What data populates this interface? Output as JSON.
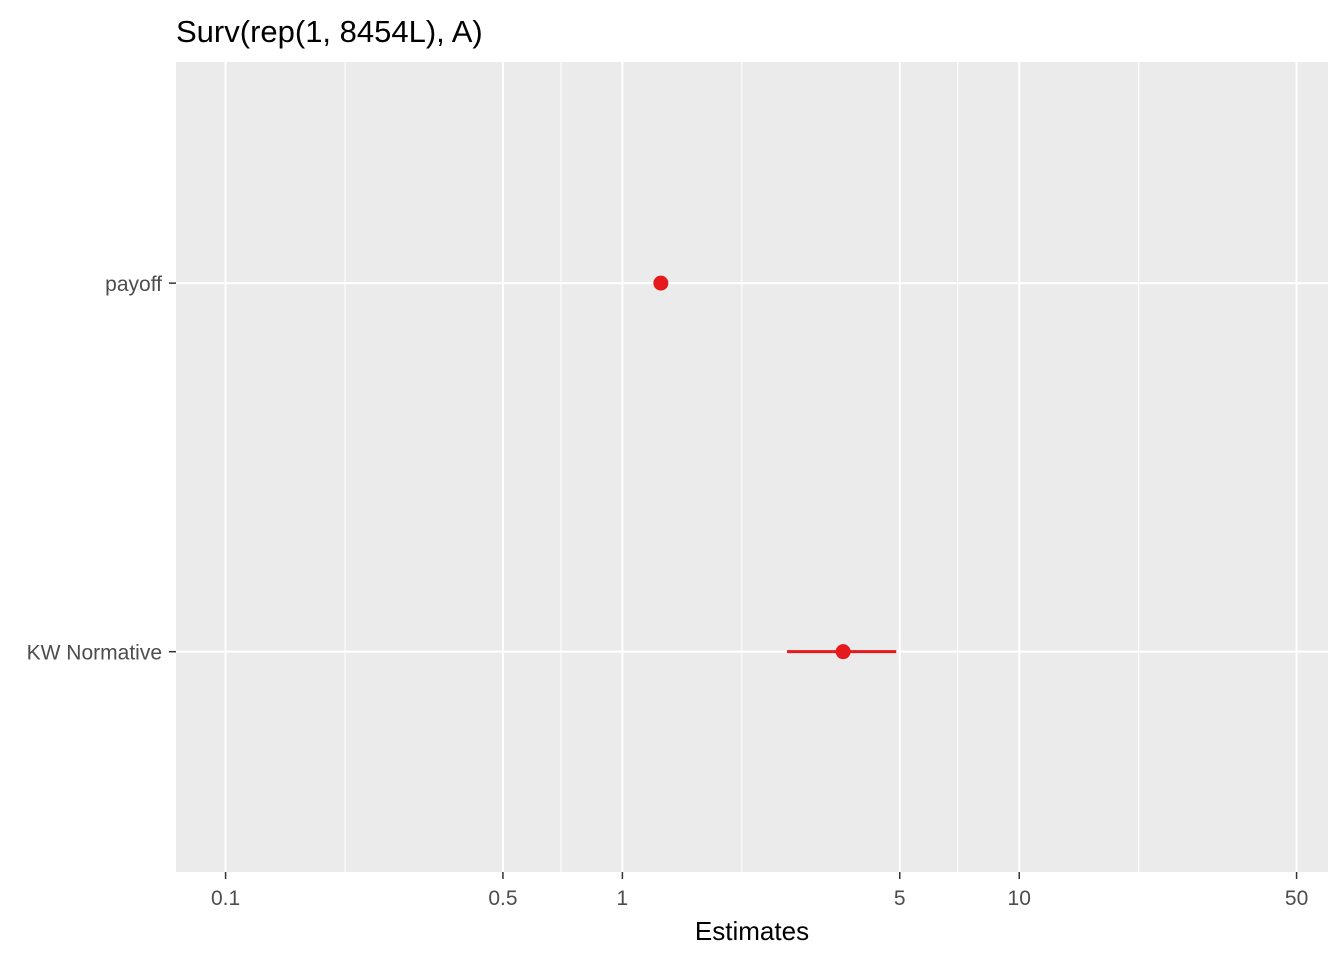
{
  "chart_data": {
    "type": "scatter",
    "title": "Surv(rep(1, 8454L), A)",
    "xlabel": "Estimates",
    "ylabel": "",
    "x_scale": "log10",
    "xlim": [
      0.075,
      60
    ],
    "x_ticks": [
      {
        "value": 0.1,
        "label": "0.1"
      },
      {
        "value": 0.5,
        "label": "0.5"
      },
      {
        "value": 1,
        "label": "1"
      },
      {
        "value": 5,
        "label": "5"
      },
      {
        "value": 10,
        "label": "10"
      },
      {
        "value": 50,
        "label": "50"
      }
    ],
    "x_minor_gridlines": [
      0.2,
      0.7,
      2,
      7,
      20
    ],
    "categories": [
      "payoff",
      "KW Normative"
    ],
    "points": [
      {
        "label": "payoff",
        "estimate": 1.25,
        "conf_low": 1.25,
        "conf_high": 1.25
      },
      {
        "label": "KW Normative",
        "estimate": 3.6,
        "conf_low": 2.6,
        "conf_high": 4.9
      }
    ],
    "grid": true,
    "legend": "none",
    "colors": {
      "panel_background": "#ebebeb",
      "grid": "#ffffff",
      "point": "#e41a1c",
      "tick": "#333333"
    }
  }
}
